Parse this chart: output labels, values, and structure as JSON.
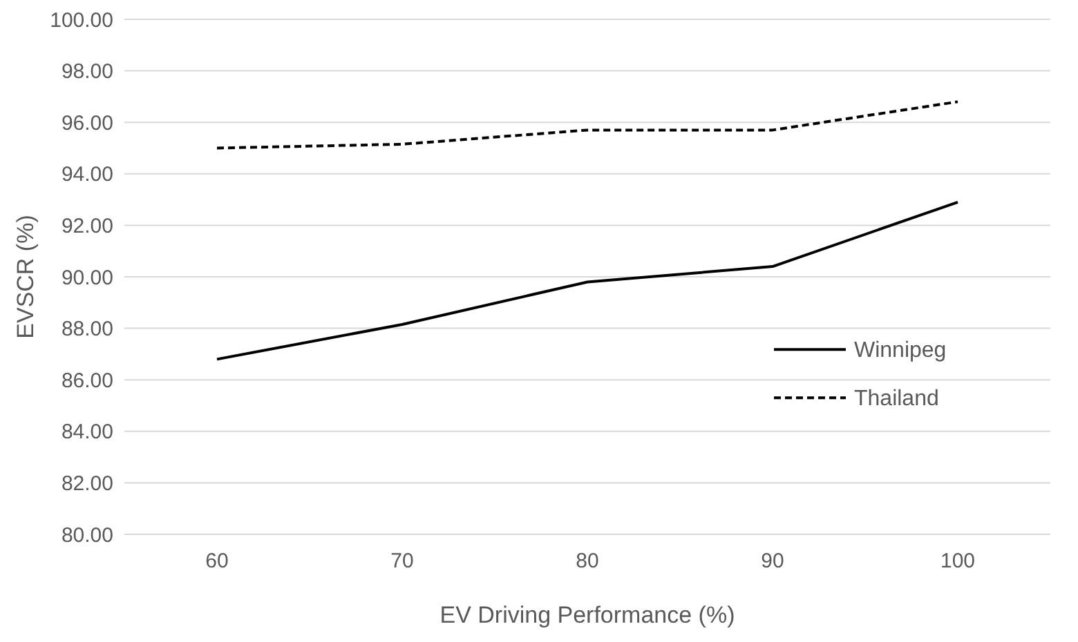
{
  "chart_data": {
    "type": "line",
    "xlabel": "EV Driving Performance (%)",
    "ylabel": "EVSCR (%)",
    "categories": [
      "60",
      "70",
      "80",
      "90",
      "100"
    ],
    "series": [
      {
        "name": "Winnipeg",
        "color": "#000000",
        "values": [
          86.8,
          88.15,
          89.8,
          90.4,
          92.9
        ],
        "line_style": "solid"
      },
      {
        "name": "Thailand",
        "color": "#000000",
        "values": [
          95.0,
          95.15,
          95.7,
          95.7,
          96.8
        ],
        "line_style": "dashed"
      }
    ],
    "ylim": [
      80,
      100
    ],
    "yticks": [
      {
        "value": 80,
        "label": "80.00"
      },
      {
        "value": 82,
        "label": "82.00"
      },
      {
        "value": 84,
        "label": "84.00"
      },
      {
        "value": 86,
        "label": "86.00"
      },
      {
        "value": 88,
        "label": "88.00"
      },
      {
        "value": 90,
        "label": "90.00"
      },
      {
        "value": 92,
        "label": "92.00"
      },
      {
        "value": 94,
        "label": "94.00"
      },
      {
        "value": 96,
        "label": "96.00"
      },
      {
        "value": 98,
        "label": "98.00"
      },
      {
        "value": 100,
        "label": "100.00"
      }
    ],
    "grid": "y",
    "legend": "right",
    "marker": "none"
  }
}
